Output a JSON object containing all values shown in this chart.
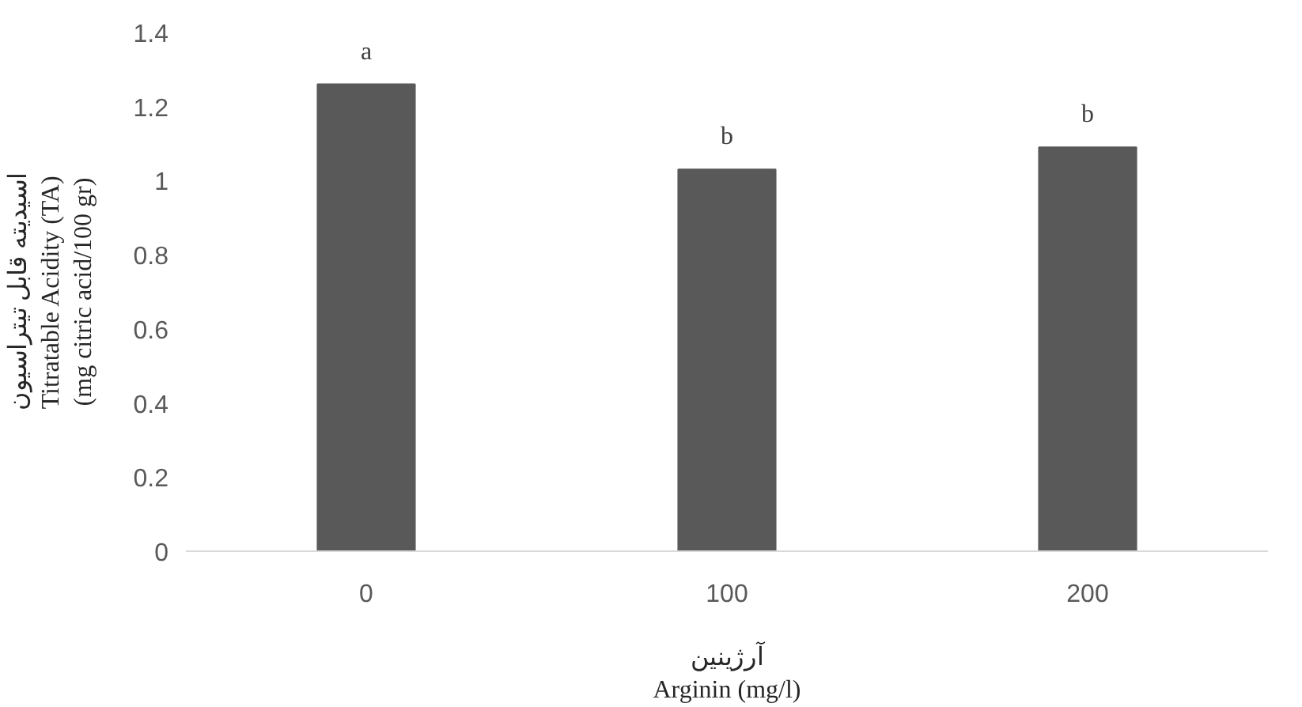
{
  "chart_data": {
    "type": "bar",
    "categories": [
      "0",
      "100",
      "200"
    ],
    "values": [
      1.26,
      1.03,
      1.09
    ],
    "color": "#595959",
    "ylabel": "اسیدیته قابل تیتراسیون\nTitratable Acidity (TA)\n(mg citric acid/100 gr)",
    "xlabel": "آرژینین\nArginin (mg/l)",
    "ylim": [
      0,
      1.4
    ],
    "yticks": [
      0,
      0.2,
      0.4,
      0.6,
      0.8,
      1,
      1.2,
      1.4
    ],
    "grid": false,
    "annotations": [
      {
        "text": "a",
        "x": "0",
        "y": 1.26
      },
      {
        "text": "b",
        "x": "100",
        "y": 1.03
      },
      {
        "text": "b",
        "x": "200",
        "y": 1.09
      }
    ]
  }
}
